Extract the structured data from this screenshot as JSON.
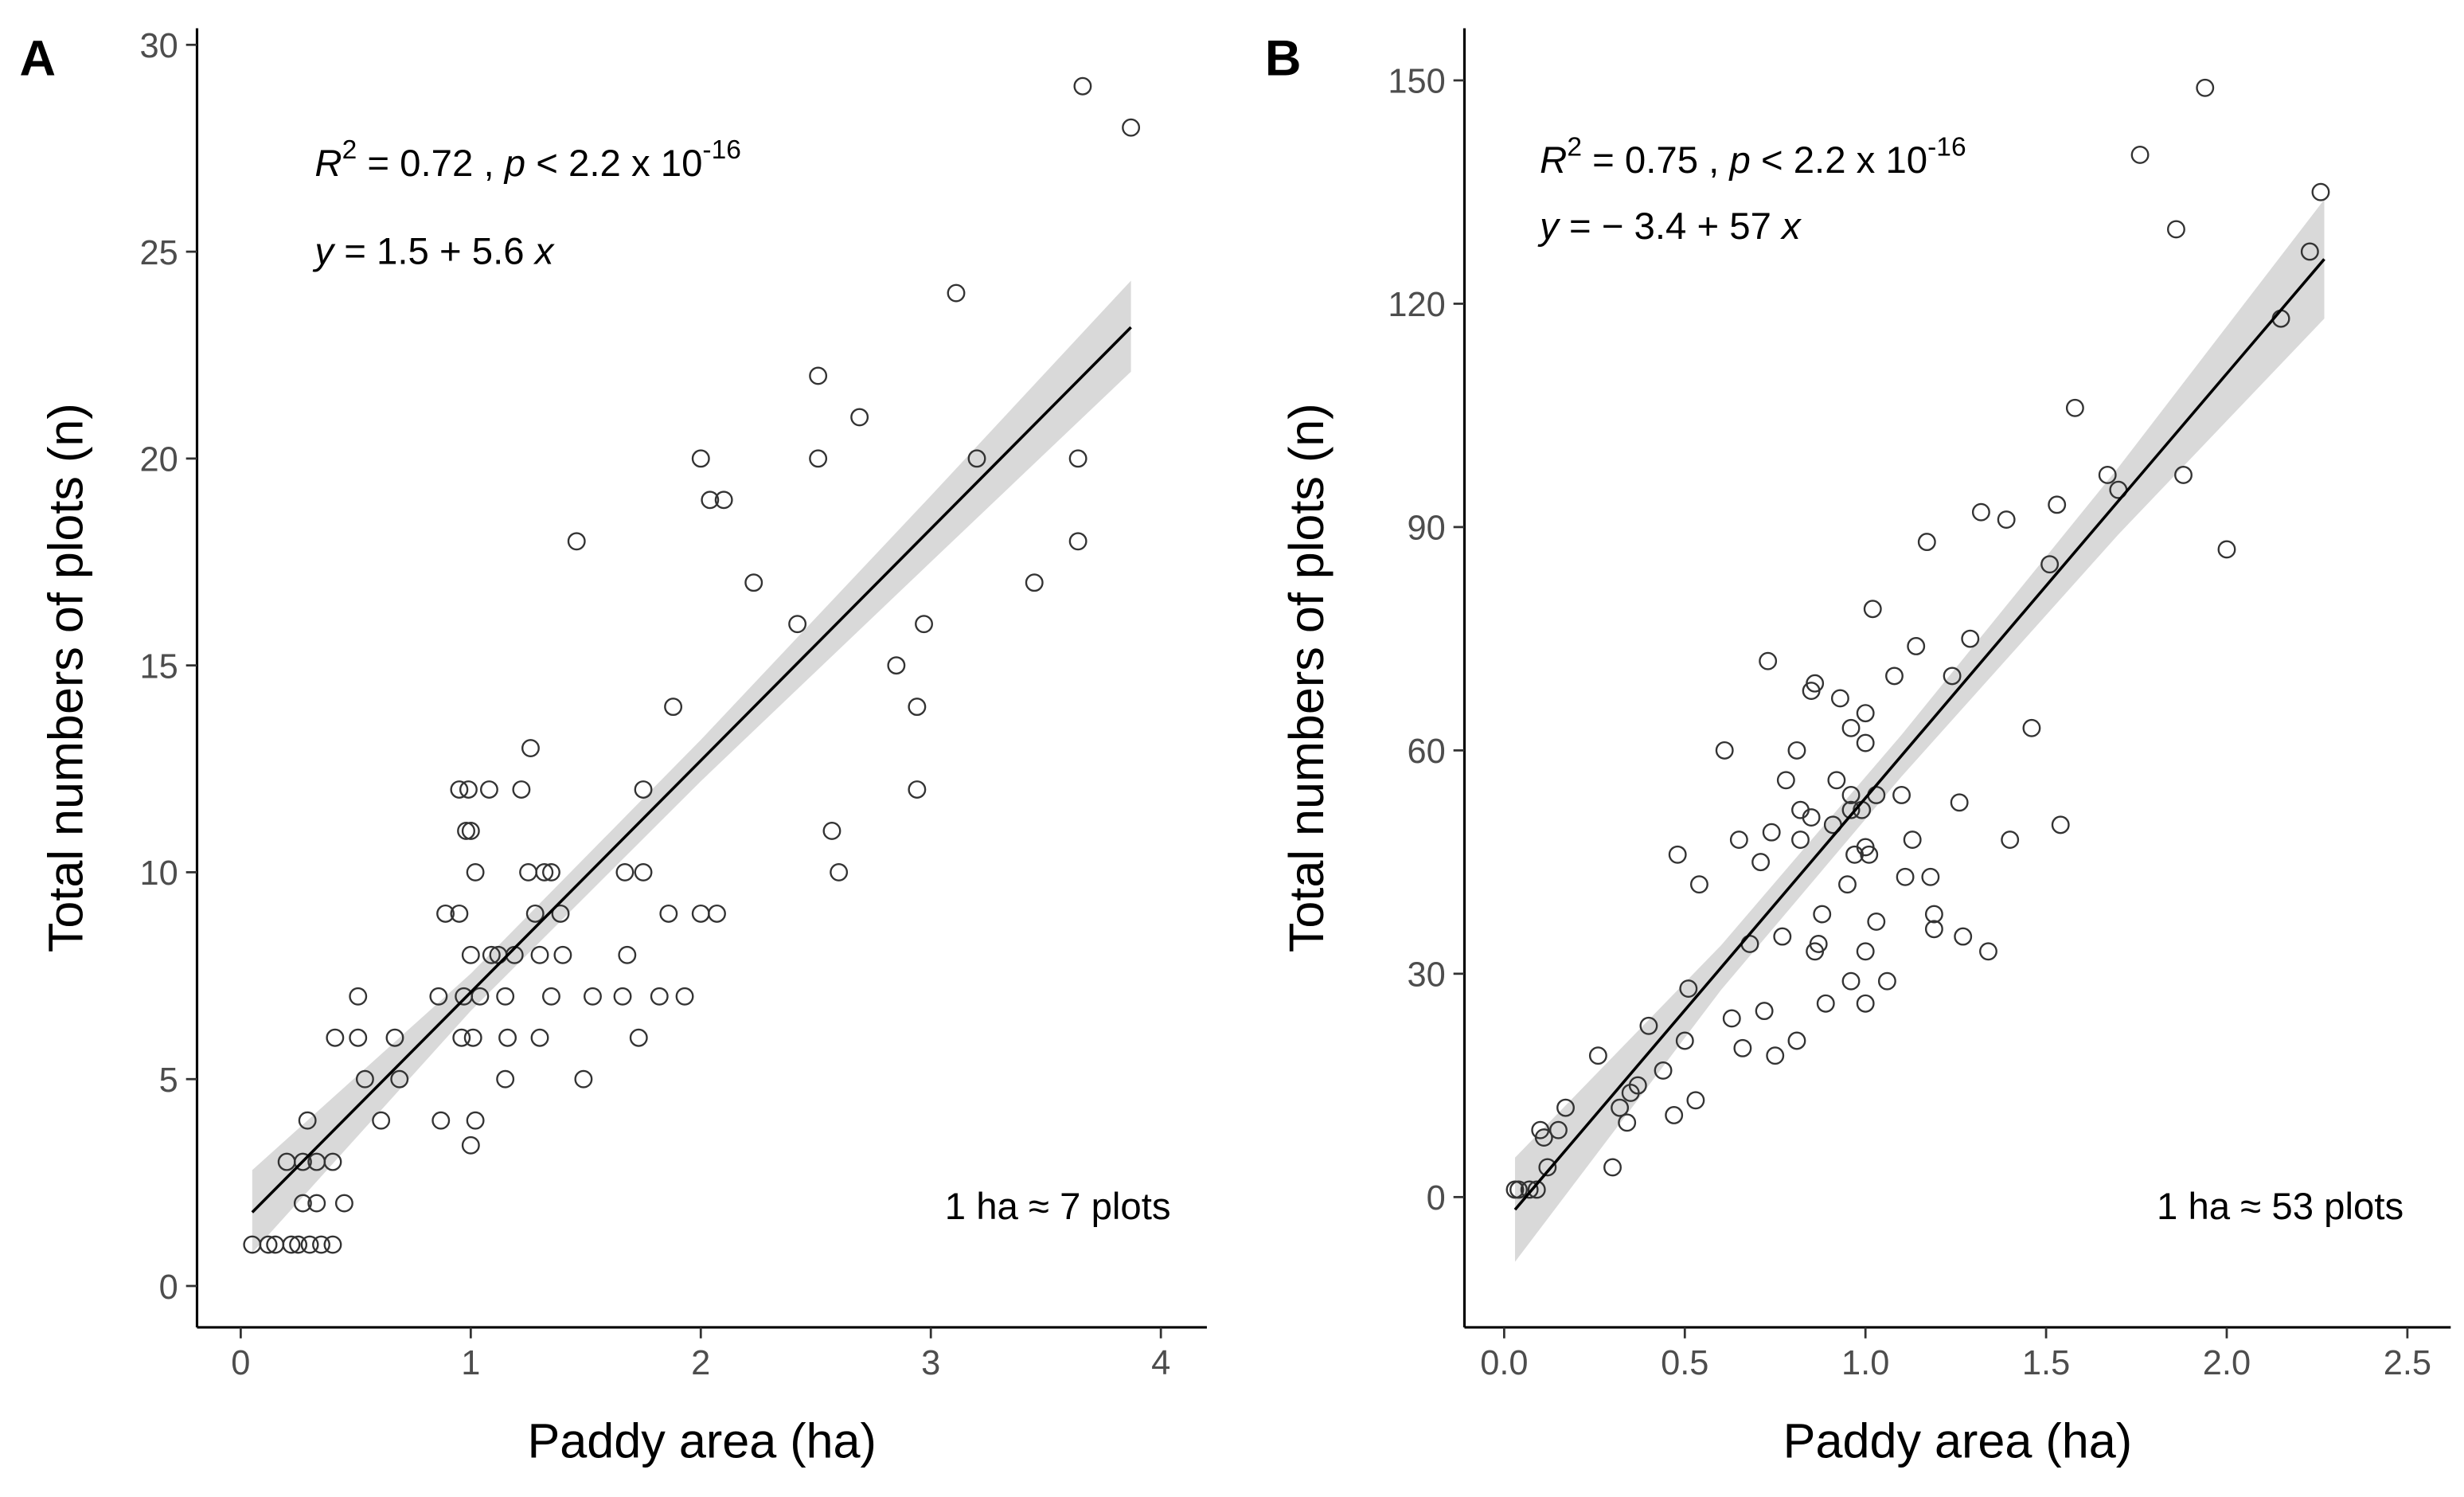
{
  "chart_data": [
    {
      "type": "scatter",
      "panel": "A",
      "xlabel": "Paddy area (ha)",
      "ylabel": "Total numbers of plots (n)",
      "xlim": [
        -0.19,
        4.2
      ],
      "ylim": [
        -1.0,
        30.4
      ],
      "xticks": [
        0,
        1,
        2,
        3,
        4
      ],
      "yticks": [
        0,
        5,
        10,
        15,
        20,
        25,
        30
      ],
      "marker_color": "#333333",
      "fit_color": "#000000",
      "band_color": "#d9d9d9",
      "x": [
        0.05,
        0.12,
        0.15,
        0.22,
        0.25,
        0.3,
        0.35,
        0.4,
        0.2,
        0.27,
        0.29,
        0.33,
        0.33,
        0.4,
        0.27,
        0.41,
        0.45,
        0.51,
        0.51,
        0.54,
        0.61,
        0.67,
        0.69,
        0.86,
        0.87,
        0.89,
        0.95,
        0.95,
        0.97,
        0.96,
        0.98,
        0.99,
        1.0,
        1.0,
        1.01,
        1.02,
        1.0,
        1.02,
        1.04,
        1.08,
        1.09,
        1.12,
        1.15,
        1.15,
        1.16,
        1.19,
        1.22,
        1.25,
        1.26,
        1.28,
        1.3,
        1.3,
        1.32,
        1.35,
        1.35,
        1.39,
        1.4,
        1.46,
        1.49,
        1.53,
        1.66,
        1.68,
        1.67,
        1.75,
        1.73,
        1.75,
        1.82,
        1.86,
        1.88,
        1.93,
        2.0,
        2.0,
        2.04,
        2.07,
        2.1,
        2.23,
        2.42,
        2.51,
        2.51,
        2.57,
        2.6,
        2.69,
        2.85,
        2.94,
        2.94,
        2.97,
        3.11,
        3.2,
        3.45,
        3.64,
        3.64,
        3.66,
        3.87
      ],
      "values": [
        1,
        1,
        1,
        1,
        1,
        1,
        1,
        1,
        3,
        3,
        4,
        3,
        2,
        3,
        2,
        6,
        2,
        6,
        7,
        5,
        4,
        6,
        5,
        7,
        4,
        9,
        9,
        12,
        7,
        6,
        11,
        12,
        8,
        11,
        6,
        4,
        3.4,
        10,
        7,
        12,
        8,
        8,
        5,
        7,
        6,
        8,
        12,
        10,
        13,
        9,
        6,
        8,
        10,
        10,
        7,
        9,
        8,
        18,
        5,
        7,
        7,
        8,
        10,
        10,
        6,
        12,
        7,
        9,
        14,
        7,
        9,
        20,
        19,
        9,
        19,
        17,
        16,
        20,
        22,
        11,
        10,
        21,
        15,
        12,
        14,
        16,
        24,
        20,
        17,
        20,
        18,
        29,
        28
      ],
      "fit": {
        "intercept": 1.5,
        "slope": 5.6,
        "x_range": [
          0.05,
          3.87
        ]
      },
      "band": {
        "x": [
          0.05,
          1.0,
          2.0,
          3.0,
          3.87
        ],
        "lower": [
          0.8,
          6.65,
          12.2,
          17.5,
          22.1
        ],
        "upper": [
          2.8,
          7.55,
          13.2,
          19.1,
          24.3
        ]
      },
      "stats": {
        "r": "R",
        "r_exp": "2",
        "r_text": " = 0.72 , ",
        "p": "p",
        "p_text": " < 2.2 x 10",
        "p_exp": "-16"
      },
      "equation": {
        "lhs": "y",
        "text": " = 1.5 + 5.6 ",
        "var": "x"
      },
      "note": "1 ha ≈ 7 plots"
    },
    {
      "type": "scatter",
      "panel": "B",
      "xlabel": "Paddy area (ha)",
      "ylabel": "Total numbers of plots (n)",
      "xlim": [
        -0.11,
        2.62
      ],
      "ylim": [
        -17.5,
        157
      ],
      "xticks": [
        {
          "value": 0,
          "label": "0.0"
        },
        0.5,
        {
          "value": 1,
          "label": "1.0"
        },
        1.5,
        {
          "value": 2,
          "label": "2.0"
        },
        2.5
      ],
      "yticks": [
        0,
        30,
        60,
        90,
        120,
        150
      ],
      "marker_color": "#333333",
      "fit_color": "#000000",
      "band_color": "#d9d9d9",
      "x": [
        0.03,
        0.04,
        0.07,
        0.09,
        0.1,
        0.11,
        0.12,
        0.15,
        0.17,
        0.26,
        0.3,
        0.32,
        0.34,
        0.35,
        0.37,
        0.4,
        0.44,
        0.47,
        0.48,
        0.5,
        0.51,
        0.53,
        0.54,
        0.61,
        0.63,
        0.65,
        0.66,
        0.68,
        0.71,
        0.72,
        0.73,
        0.74,
        0.75,
        0.77,
        0.78,
        0.81,
        0.81,
        0.82,
        0.82,
        0.85,
        0.85,
        0.86,
        0.86,
        0.87,
        0.88,
        0.89,
        0.91,
        0.92,
        0.93,
        0.95,
        0.96,
        0.96,
        0.96,
        0.96,
        0.97,
        0.99,
        1.0,
        1.0,
        1.0,
        1.0,
        1.0,
        1.01,
        1.02,
        1.03,
        1.03,
        1.06,
        1.08,
        1.1,
        1.11,
        1.13,
        1.14,
        1.17,
        1.18,
        1.19,
        1.19,
        1.24,
        1.26,
        1.27,
        1.29,
        1.32,
        1.34,
        1.39,
        1.4,
        1.46,
        1.51,
        1.53,
        1.54,
        1.58,
        1.67,
        1.7,
        1.76,
        1.86,
        1.88,
        1.94,
        2.0,
        2.15,
        2.23,
        2.26
      ],
      "values": [
        1,
        1,
        1,
        1,
        9,
        8,
        4,
        9,
        12,
        19,
        4,
        12,
        10,
        14,
        15,
        23,
        17,
        11,
        46,
        21,
        28,
        13,
        42,
        60,
        24,
        48,
        20,
        34,
        45,
        25,
        72,
        49,
        19,
        35,
        56,
        60,
        21,
        52,
        48,
        68,
        51,
        69,
        33,
        34,
        38,
        26,
        50,
        56,
        67,
        42,
        54,
        52,
        29,
        63,
        46,
        52,
        65,
        47,
        61,
        26,
        33,
        46,
        79,
        54,
        37,
        29,
        70,
        54,
        43,
        48,
        74,
        88,
        43,
        38,
        36,
        70,
        53,
        35,
        75,
        92,
        33,
        91,
        48,
        63,
        85,
        93,
        50,
        106,
        97,
        95,
        140,
        130,
        97,
        149,
        87,
        118,
        127,
        135
      ],
      "fit": {
        "intercept": -3.4,
        "slope": 57,
        "x_range": [
          0.03,
          2.27
        ]
      },
      "band": {
        "x": [
          0.03,
          0.6,
          1.1,
          1.7,
          2.27
        ],
        "lower": [
          -8.7,
          27.8,
          56.5,
          89.0,
          118.0
        ],
        "upper": [
          5.3,
          33.8,
          62.1,
          98.0,
          134.0
        ]
      },
      "stats": {
        "r": "R",
        "r_exp": "2",
        "r_text": " = 0.75 , ",
        "p": "p",
        "p_text": " < 2.2 x 10",
        "p_exp": "-16"
      },
      "equation": {
        "lhs": "y",
        "text": " = − 3.4 + 57 ",
        "var": "x"
      },
      "note": "1 ha ≈ 53 plots"
    }
  ]
}
